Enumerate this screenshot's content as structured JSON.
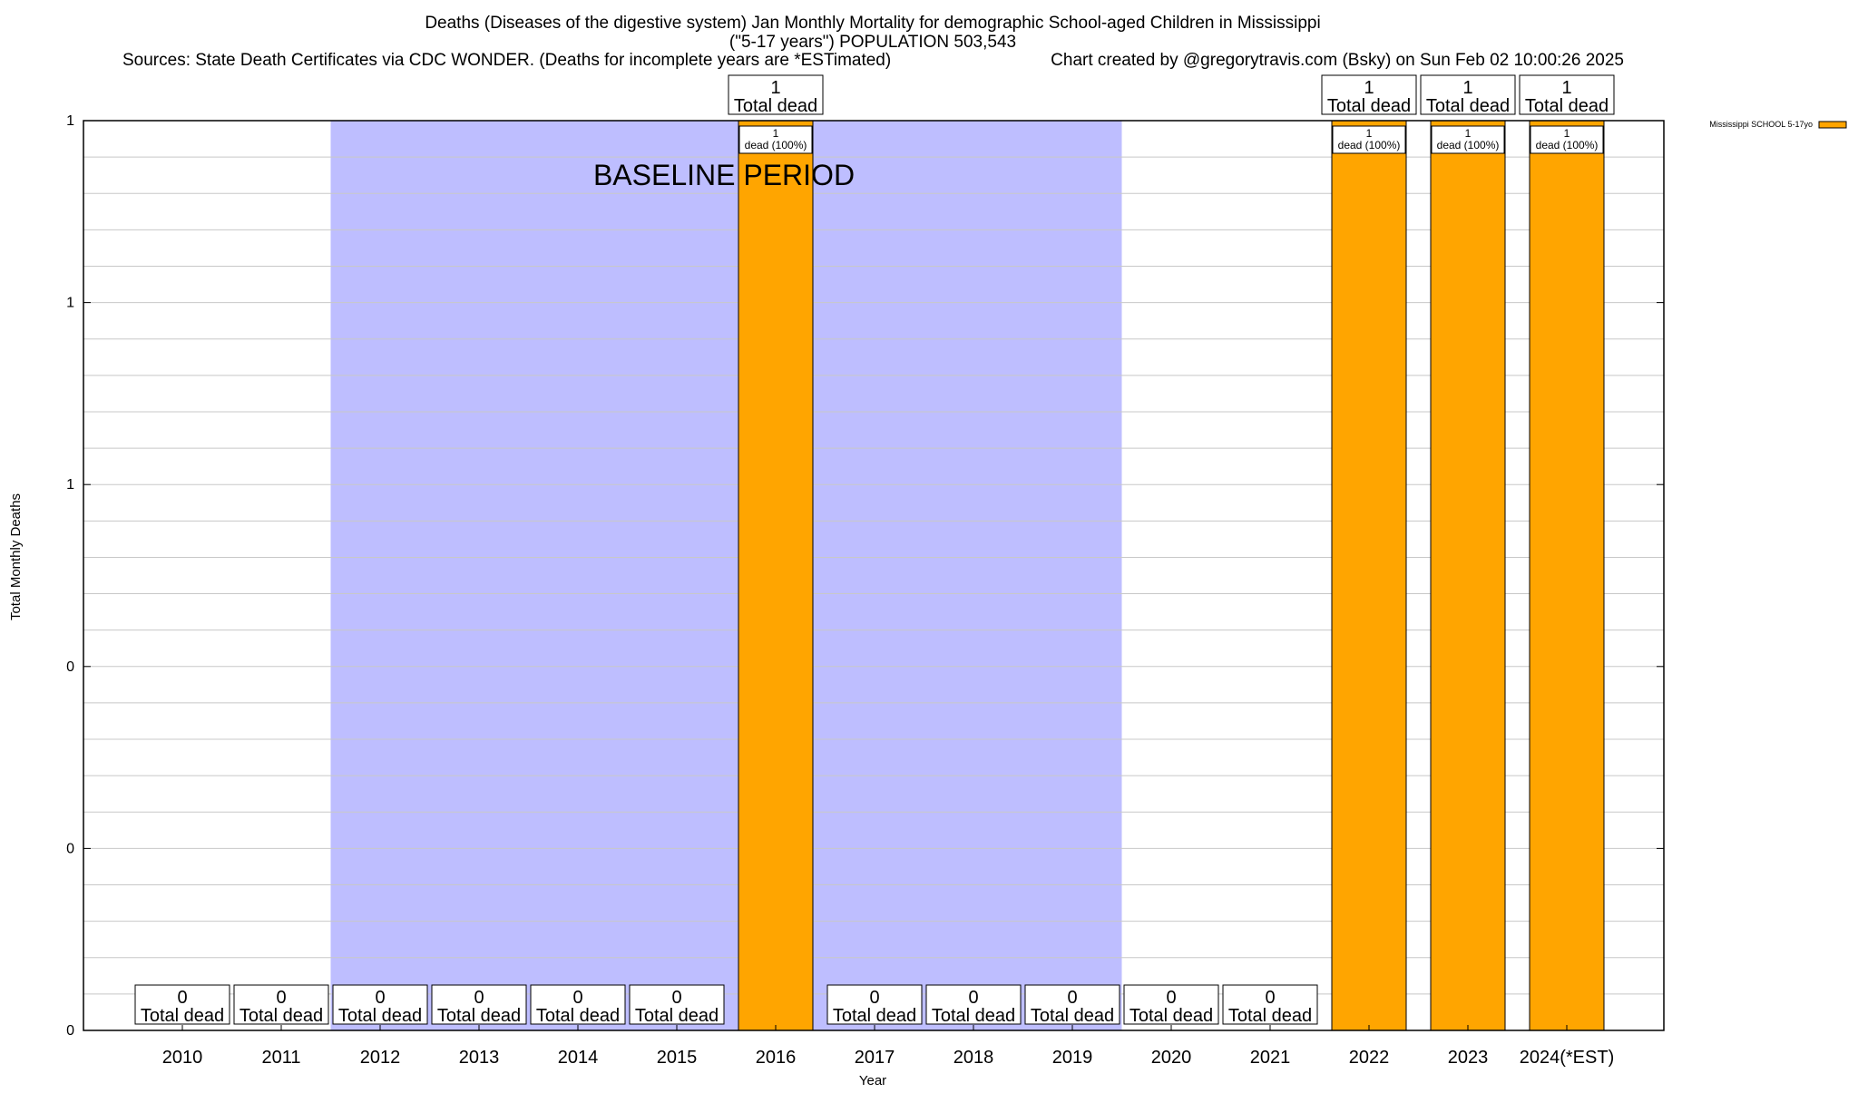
{
  "chart_data": {
    "type": "bar",
    "title_line1": "Deaths (Diseases of the digestive system) Jan Monthly Mortality for demographic School-aged Children in Mississippi",
    "title_line2": "(\"5-17 years\") POPULATION 503,543",
    "sources": "Sources: State Death Certificates via CDC WONDER. (Deaths for incomplete years are *ESTimated)",
    "credit": "Chart created by @gregorytravis.com (Bsky) on Sun Feb 02 10:00:26 2025",
    "xlabel": "Year",
    "ylabel": "Total Monthly Deaths",
    "ylim": [
      0,
      1
    ],
    "y_tick_labels": [
      "0",
      "0",
      "0",
      "1",
      "1",
      "1"
    ],
    "grid": true,
    "baseline_label": "BASELINE PERIOD",
    "baseline_range": [
      "2012",
      "2019"
    ],
    "categories": [
      "2010",
      "2011",
      "2012",
      "2013",
      "2014",
      "2015",
      "2016",
      "2017",
      "2018",
      "2019",
      "2020",
      "2021",
      "2022",
      "2023",
      "2024(*EST)"
    ],
    "series": [
      {
        "name": "Mississippi SCHOOL 5-17yo",
        "color": "#FFA500",
        "values": [
          0,
          0,
          0,
          0,
          0,
          0,
          1,
          0,
          0,
          0,
          0,
          0,
          1,
          1,
          1
        ]
      }
    ],
    "total_label_suffix": "Total dead",
    "bar_label_suffix": "dead (100%)",
    "legend_position": "top-right",
    "baseline_color": "#BEBEFF"
  }
}
